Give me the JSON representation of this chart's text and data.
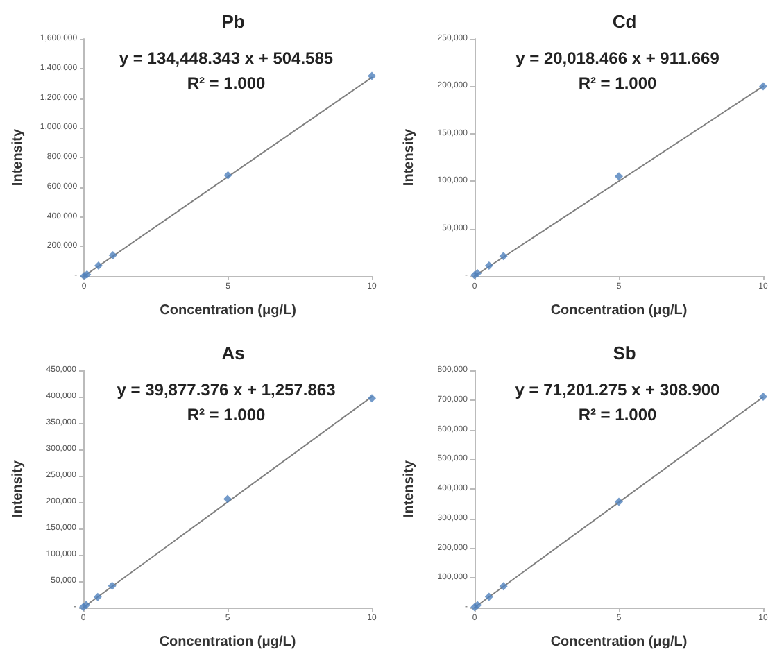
{
  "chart_data": [
    {
      "type": "scatter",
      "title": "Pb",
      "xlabel": "Concentration (μg/L)",
      "ylabel": "Intensity",
      "annotations": [
        "y = 134,448.343 x + 504.585",
        "R² = 1.000"
      ],
      "marker": "diamond",
      "grid": false,
      "xlim": [
        0,
        10
      ],
      "xticks": [
        0,
        5,
        10
      ],
      "ylim": [
        0,
        1600000
      ],
      "yticks": [
        {
          "value": 0,
          "label": "-"
        },
        {
          "value": 200000,
          "label": "200,000"
        },
        {
          "value": 400000,
          "label": "400,000"
        },
        {
          "value": 600000,
          "label": "600,000"
        },
        {
          "value": 800000,
          "label": "800,000"
        },
        {
          "value": 1000000,
          "label": "1,000,000"
        },
        {
          "value": 1200000,
          "label": "1,200,000"
        },
        {
          "value": 1400000,
          "label": "1,400,000"
        },
        {
          "value": 1600000,
          "label": "1,600,000"
        }
      ],
      "series": [
        {
          "type": "line",
          "marker": "none",
          "color": "#808080",
          "x": [
            0,
            10
          ],
          "values": [
            0,
            1340000
          ]
        },
        {
          "color": "#4f81bd",
          "x": [
            0,
            0.1,
            0.5,
            1,
            5,
            10
          ],
          "values": [
            0,
            10000,
            70000,
            140000,
            680000,
            1350000
          ]
        }
      ]
    },
    {
      "type": "scatter",
      "title": "Cd",
      "xlabel": "Concentration (μg/L)",
      "ylabel": "Intensity",
      "annotations": [
        "y = 20,018.466 x + 911.669",
        "R² = 1.000"
      ],
      "marker": "diamond",
      "grid": false,
      "xlim": [
        0,
        10
      ],
      "xticks": [
        0,
        5,
        10
      ],
      "ylim": [
        0,
        250000
      ],
      "yticks": [
        {
          "value": 0,
          "label": "-"
        },
        {
          "value": 50000,
          "label": "50,000"
        },
        {
          "value": 100000,
          "label": "100,000"
        },
        {
          "value": 150000,
          "label": "150,000"
        },
        {
          "value": 200000,
          "label": "200,000"
        },
        {
          "value": 250000,
          "label": "250,000"
        }
      ],
      "series": [
        {
          "type": "line",
          "marker": "none",
          "color": "#808080",
          "x": [
            0,
            10
          ],
          "values": [
            0,
            200000
          ]
        },
        {
          "color": "#4f81bd",
          "x": [
            0,
            0.1,
            0.5,
            1,
            5,
            10
          ],
          "values": [
            1000,
            3000,
            11000,
            21000,
            105000,
            200000
          ]
        }
      ]
    },
    {
      "type": "scatter",
      "title": "As",
      "xlabel": "Concentration (μg/L)",
      "ylabel": "Intensity",
      "annotations": [
        "y = 39,877.376 x + 1,257.863",
        "R² = 1.000"
      ],
      "marker": "diamond",
      "grid": false,
      "xlim": [
        0,
        10
      ],
      "xticks": [
        0,
        5,
        10
      ],
      "ylim": [
        0,
        450000
      ],
      "yticks": [
        {
          "value": 0,
          "label": "-"
        },
        {
          "value": 50000,
          "label": "50,000"
        },
        {
          "value": 100000,
          "label": "100,000"
        },
        {
          "value": 150000,
          "label": "150,000"
        },
        {
          "value": 200000,
          "label": "200,000"
        },
        {
          "value": 250000,
          "label": "250,000"
        },
        {
          "value": 300000,
          "label": "300,000"
        },
        {
          "value": 350000,
          "label": "350,000"
        },
        {
          "value": 400000,
          "label": "400,000"
        },
        {
          "value": 450000,
          "label": "450,000"
        }
      ],
      "series": [
        {
          "type": "line",
          "marker": "none",
          "color": "#808080",
          "x": [
            0,
            10
          ],
          "values": [
            0,
            400000
          ]
        },
        {
          "color": "#4f81bd",
          "x": [
            0,
            0.1,
            0.5,
            1,
            5,
            10
          ],
          "values": [
            1000,
            5000,
            20000,
            41000,
            206000,
            397000
          ]
        }
      ]
    },
    {
      "type": "scatter",
      "title": "Sb",
      "xlabel": "Concentration (μg/L)",
      "ylabel": "Intensity",
      "annotations": [
        "y = 71,201.275 x + 308.900",
        "R² = 1.000"
      ],
      "marker": "diamond",
      "grid": false,
      "xlim": [
        0,
        10
      ],
      "xticks": [
        0,
        5,
        10
      ],
      "ylim": [
        0,
        800000
      ],
      "yticks": [
        {
          "value": 0,
          "label": "-"
        },
        {
          "value": 100000,
          "label": "100,000"
        },
        {
          "value": 200000,
          "label": "200,000"
        },
        {
          "value": 300000,
          "label": "300,000"
        },
        {
          "value": 400000,
          "label": "400,000"
        },
        {
          "value": 500000,
          "label": "500,000"
        },
        {
          "value": 600000,
          "label": "600,000"
        },
        {
          "value": 700000,
          "label": "700,000"
        },
        {
          "value": 800000,
          "label": "800,000"
        }
      ],
      "series": [
        {
          "type": "line",
          "marker": "none",
          "color": "#808080",
          "x": [
            0,
            10
          ],
          "values": [
            0,
            710000
          ]
        },
        {
          "color": "#4f81bd",
          "x": [
            0,
            0.1,
            0.5,
            1,
            5,
            10
          ],
          "values": [
            1000,
            8000,
            36000,
            72000,
            357000,
            711000
          ]
        }
      ]
    }
  ]
}
